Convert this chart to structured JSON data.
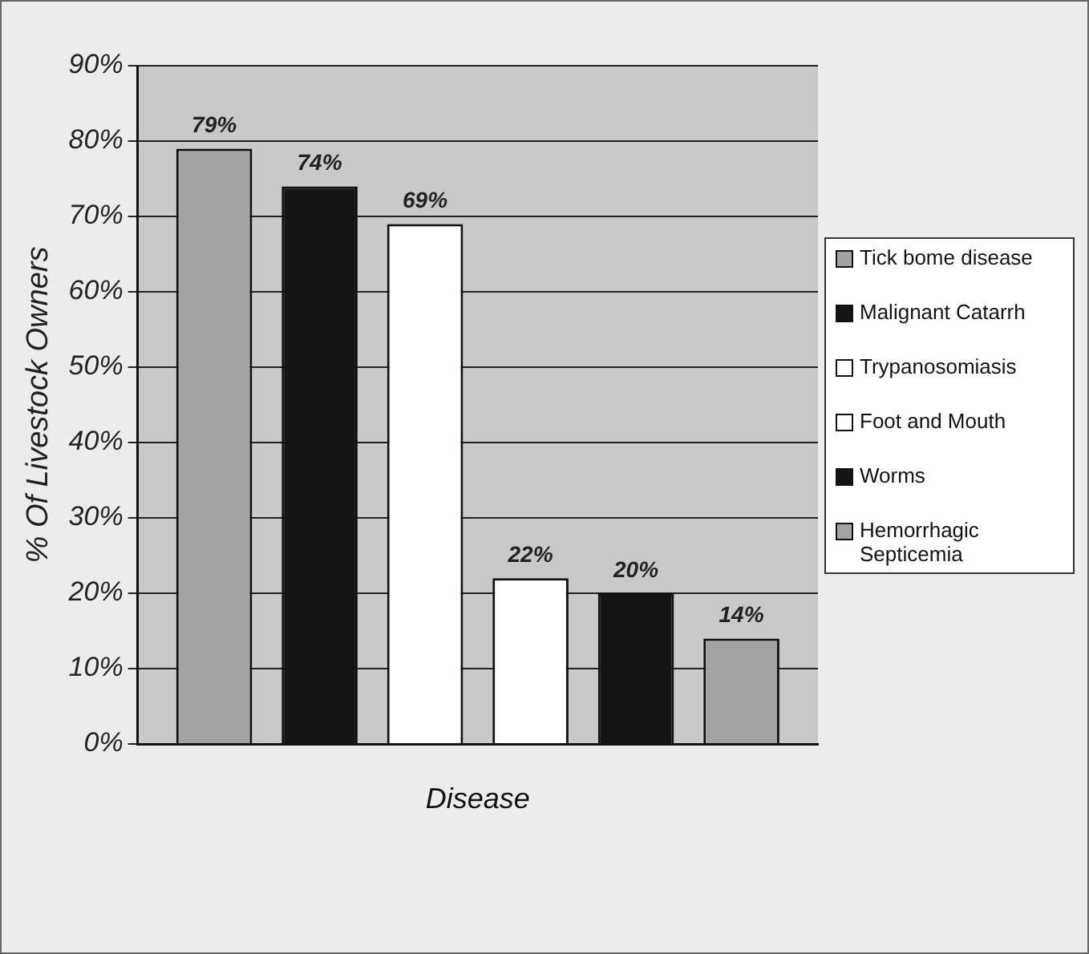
{
  "chart_data": {
    "type": "bar",
    "xlabel": "Disease",
    "ylabel": "% Of Livestock Owners",
    "categories": [
      null
    ],
    "series": [
      {
        "name": "Tick bome disease",
        "color": "#a3a3a3",
        "values": [
          79
        ],
        "value_labels": [
          "79%"
        ]
      },
      {
        "name": "Malignant Catarrh",
        "color": "#141414",
        "values": [
          74
        ],
        "value_labels": [
          "74%"
        ]
      },
      {
        "name": "Trypanosomiasis",
        "color": "#ffffff",
        "values": [
          69
        ],
        "value_labels": [
          "69%"
        ]
      },
      {
        "name": "Foot and Mouth",
        "color": "#ffffff",
        "values": [
          22
        ],
        "value_labels": [
          "22%"
        ]
      },
      {
        "name": "Worms",
        "color": "#141414",
        "values": [
          20
        ],
        "value_labels": [
          "20%"
        ]
      },
      {
        "name": "Hemorrhagic Septicemia",
        "color": "#a3a3a3",
        "values": [
          14
        ],
        "value_labels": [
          "14%"
        ]
      }
    ],
    "ylim": [
      0,
      90
    ],
    "yticks": [
      {
        "value": 0,
        "label": "0%"
      },
      {
        "value": 10,
        "label": "10%"
      },
      {
        "value": 20,
        "label": "20%"
      },
      {
        "value": 30,
        "label": "30%"
      },
      {
        "value": 40,
        "label": "40%"
      },
      {
        "value": 50,
        "label": "50%"
      },
      {
        "value": 60,
        "label": "60%"
      },
      {
        "value": 70,
        "label": "70%"
      },
      {
        "value": 80,
        "label": "80%"
      },
      {
        "value": 90,
        "label": "90%"
      }
    ],
    "grid": "y",
    "legend": "right"
  }
}
